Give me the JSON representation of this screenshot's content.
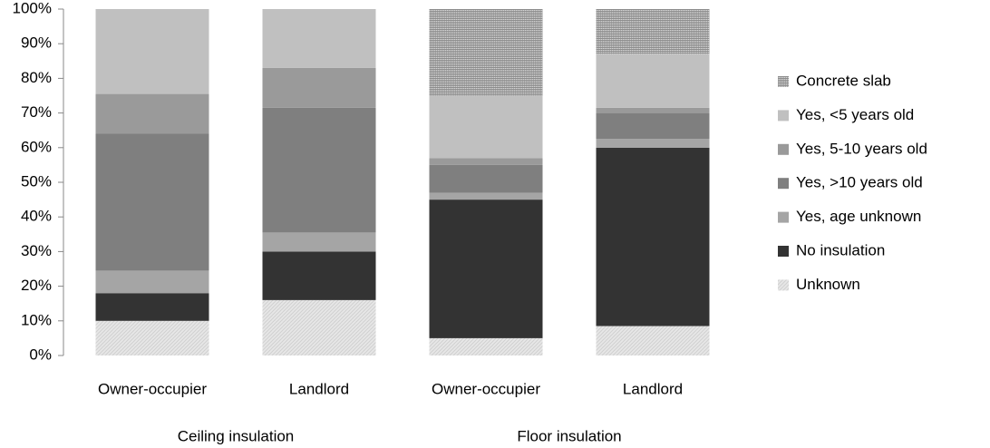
{
  "chart_data": {
    "type": "stacked_bar",
    "categories": [
      "Owner-occupier",
      "Landlord",
      "Owner-occupier",
      "Landlord"
    ],
    "groups": [
      "Ceiling insulation",
      "Floor insulation"
    ],
    "series": [
      {
        "name": "Concrete slab",
        "color": "#8c8c8c",
        "pattern": "crosshatch",
        "values": [
          0,
          0,
          25,
          13
        ]
      },
      {
        "name": "Yes, <5 years old",
        "color": "#c0c0c0",
        "values": [
          24.5,
          17,
          18,
          15.5
        ]
      },
      {
        "name": "Yes, 5-10 years old",
        "color": "#9a9a9a",
        "values": [
          11.5,
          11.5,
          2,
          1.5
        ]
      },
      {
        "name": "Yes, >10 years old",
        "color": "#7f7f7f",
        "values": [
          39.5,
          36,
          8,
          7.5
        ]
      },
      {
        "name": "Yes, age unknown",
        "color": "#a5a5a5",
        "values": [
          6.5,
          5.5,
          2,
          2.5
        ]
      },
      {
        "name": "No insulation",
        "color": "#333333",
        "values": [
          8,
          14,
          40,
          51.5
        ]
      },
      {
        "name": "Unknown",
        "color": "#d0d0d0",
        "pattern": "diagonal",
        "values": [
          10,
          16,
          5,
          8.5
        ]
      }
    ],
    "ylim": [
      0,
      100
    ],
    "yticks": [
      {
        "value": 0,
        "label": "0%"
      },
      {
        "value": 10,
        "label": "10%"
      },
      {
        "value": 20,
        "label": "20%"
      },
      {
        "value": 30,
        "label": "30%"
      },
      {
        "value": 40,
        "label": "40%"
      },
      {
        "value": 50,
        "label": "50%"
      },
      {
        "value": 60,
        "label": "60%"
      },
      {
        "value": 70,
        "label": "70%"
      },
      {
        "value": 80,
        "label": "80%"
      },
      {
        "value": 90,
        "label": "90%"
      },
      {
        "value": 100,
        "label": "100%"
      }
    ],
    "grid": false,
    "legend": "right"
  }
}
